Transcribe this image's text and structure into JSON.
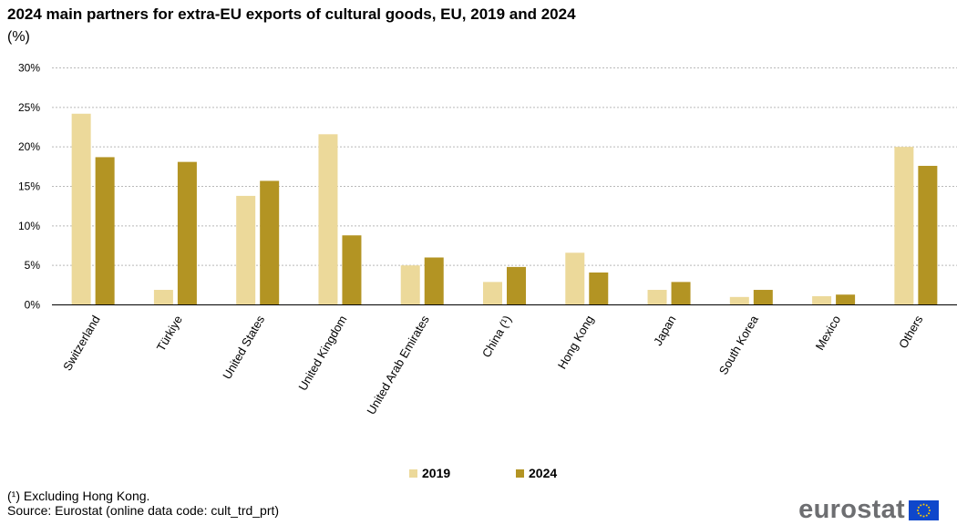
{
  "header": {
    "title": "2024 main partners for extra-EU exports of cultural goods, EU, 2019 and 2024",
    "unit": "(%)"
  },
  "chart_data": {
    "type": "bar",
    "title": "2024 main partners for extra-EU exports of cultural goods, EU, 2019 and 2024",
    "ylabel": "(%)",
    "xlabel": "",
    "ylim": [
      0,
      30
    ],
    "yticks": [
      "0%",
      "5%",
      "10%",
      "15%",
      "20%",
      "25%",
      "30%"
    ],
    "grid": true,
    "legend_position": "bottom",
    "categories": [
      "Switzerland",
      "Türkiye",
      "United States",
      "United Kingdom",
      "United Arab Emirates",
      "China (¹)",
      "Hong Kong",
      "Japan",
      "South Korea",
      "Mexico",
      "Others"
    ],
    "series": [
      {
        "name": "2019",
        "color": "#ecd99a",
        "values": [
          24.2,
          1.9,
          13.8,
          21.6,
          5.0,
          2.9,
          6.6,
          1.9,
          1.0,
          1.1,
          20.0
        ]
      },
      {
        "name": "2024",
        "color": "#b39423",
        "values": [
          18.7,
          18.1,
          15.7,
          8.8,
          6.0,
          4.8,
          4.1,
          2.9,
          1.9,
          1.3,
          17.6
        ]
      }
    ]
  },
  "footer": {
    "note": "(¹) Excluding Hong Kong.",
    "source": "Source: Eurostat (online data code: cult_trd_prt)",
    "logo_text": "eurostat"
  }
}
